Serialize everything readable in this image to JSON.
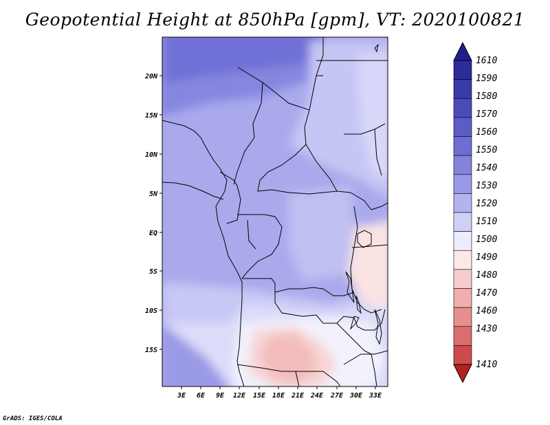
{
  "title": "Geopotential Height at 850hPa [gpm], VT: 2020100821",
  "credit": "GrADS: IGES/COLA",
  "map": {
    "lat_labels": [
      "20N",
      "15N",
      "10N",
      "5N",
      "EQ",
      "5S",
      "10S",
      "15S"
    ],
    "lon_labels": [
      "3E",
      "6E",
      "9E",
      "12E",
      "15E",
      "18E",
      "21E",
      "24E",
      "27E",
      "30E",
      "33E"
    ]
  },
  "colorbar": {
    "levels": [
      "1610",
      "1590",
      "1580",
      "1570",
      "1560",
      "1550",
      "1540",
      "1530",
      "1520",
      "1510",
      "1500",
      "1490",
      "1480",
      "1470",
      "1460",
      "1430",
      "1410"
    ],
    "colors": {
      "top_arrow": "#1e1e8c",
      "bands": [
        "#2b2b9a",
        "#3a3aa8",
        "#4b4bb8",
        "#5c5cc6",
        "#6e6ed2",
        "#8383dc",
        "#9a9ae6",
        "#b3b3ef",
        "#d0d0f7",
        "#ececfc",
        "#fde8e8",
        "#f7cccc",
        "#f0aeae",
        "#e68e8e",
        "#da6e6e",
        "#cc4c4c"
      ],
      "bottom_arrow": "#b22222"
    }
  }
}
